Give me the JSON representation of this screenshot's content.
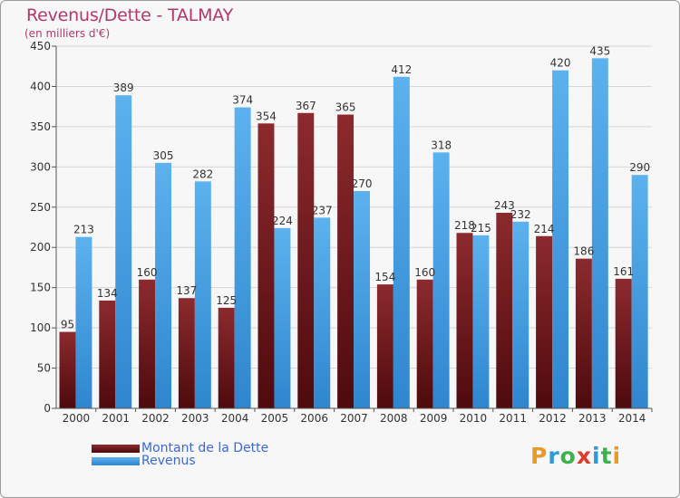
{
  "title": "Revenus/Dette - TALMAY",
  "subtitle": "(en milliers d'€)",
  "logo": {
    "letters": [
      "P",
      "r",
      "o",
      "x",
      "i",
      "t",
      "i"
    ],
    "colors": [
      "#e89a2a",
      "#2d9ad6",
      "#3bb34a",
      "#e03a2a",
      "#2d9ad6",
      "#3bb34a",
      "#e89a2a"
    ]
  },
  "chart_data": {
    "type": "bar",
    "title": "Revenus/Dette - TALMAY",
    "subtitle": "(en milliers d'€)",
    "categories": [
      "2000",
      "2001",
      "2002",
      "2003",
      "2004",
      "2005",
      "2006",
      "2007",
      "2008",
      "2009",
      "2010",
      "2011",
      "2012",
      "2013",
      "2014"
    ],
    "series": [
      {
        "name": "Montant de la Dette",
        "color": "#7a1f24",
        "values": [
          95,
          134,
          160,
          137,
          125,
          354,
          367,
          365,
          154,
          160,
          218,
          243,
          214,
          186,
          161
        ]
      },
      {
        "name": "Revenus",
        "color": "#4aa3e6",
        "values": [
          213,
          389,
          305,
          282,
          374,
          224,
          237,
          270,
          412,
          318,
          215,
          232,
          420,
          435,
          290
        ]
      }
    ],
    "value_labels": {
      "Montant de la Dette": [
        "95",
        "134",
        "160",
        "137",
        "125",
        "354",
        "367",
        "365",
        "154",
        "160",
        "218",
        "243",
        "214",
        "186",
        "161"
      ],
      "Revenus": [
        "213",
        "389",
        "305",
        "282",
        "374",
        "224",
        "237",
        "270",
        "412",
        "318",
        "215",
        "232",
        "420",
        "435",
        "290"
      ]
    },
    "ylim": [
      0,
      450
    ],
    "yticks": [
      0,
      50,
      100,
      150,
      200,
      250,
      300,
      350,
      400,
      450
    ],
    "grid": true,
    "legend_position": "bottom-left"
  }
}
